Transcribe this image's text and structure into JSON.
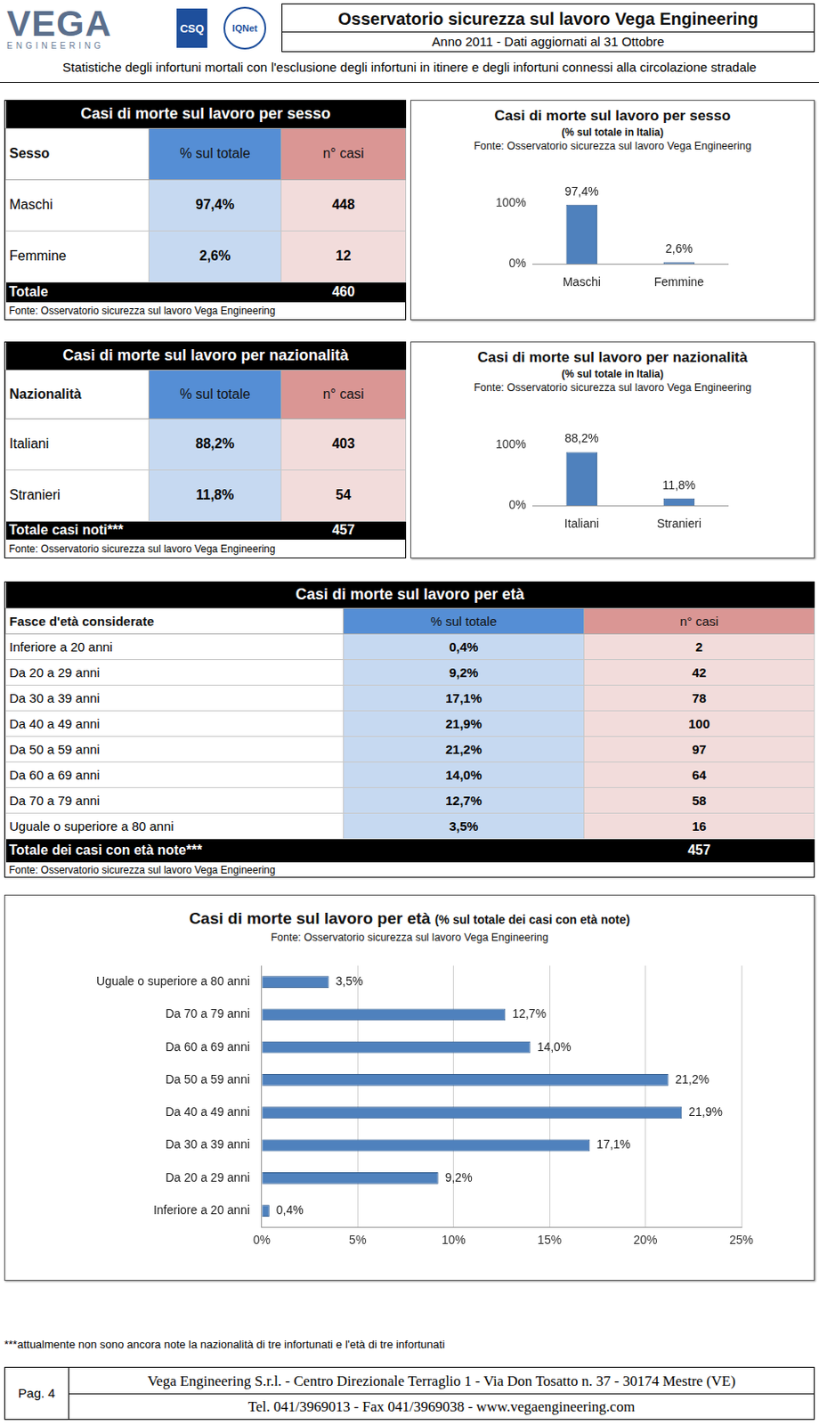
{
  "header": {
    "logos": [
      "VEGA",
      "ENGINEERING",
      "CSQ",
      "IQNet"
    ],
    "title": "Osservatorio sicurezza sul lavoro Vega Engineering",
    "subtitle": "Anno 2011 - Dati aggiornati al 31 Ottobre",
    "note": "Statistiche degli infortuni mortali con l'esclusione degli infortuni in itinere e degli infortuni connessi alla circolazione stradale"
  },
  "tables": [
    {
      "title": "Casi di morte sul lavoro per sesso",
      "columns": [
        "Sesso",
        "% sul totale",
        "n° casi"
      ],
      "rows": [
        [
          "Maschi",
          "97,4%",
          "448"
        ],
        [
          "Femmine",
          "2,6%",
          "12"
        ]
      ],
      "total": {
        "label": "Totale",
        "value": "460"
      },
      "source": "Fonte: Osservatorio sicurezza sul lavoro Vega Engineering"
    },
    {
      "title": "Casi di morte sul lavoro per nazionalità",
      "columns": [
        "Nazionalità",
        "% sul totale",
        "n° casi"
      ],
      "rows": [
        [
          "Italiani",
          "88,2%",
          "403"
        ],
        [
          "Stranieri",
          "11,8%",
          "54"
        ]
      ],
      "total": {
        "label": "Totale casi noti***",
        "value": "457"
      },
      "source": "Fonte: Osservatorio sicurezza sul lavoro Vega Engineering"
    },
    {
      "title": "Casi di morte sul lavoro per età",
      "columns": [
        "Fasce d'età considerate",
        "% sul totale",
        "n° casi"
      ],
      "rows": [
        [
          "Inferiore a 20 anni",
          "0,4%",
          "2"
        ],
        [
          "Da 20 a 29 anni",
          "9,2%",
          "42"
        ],
        [
          "Da 30 a 39 anni",
          "17,1%",
          "78"
        ],
        [
          "Da 40 a 49 anni",
          "21,9%",
          "100"
        ],
        [
          "Da 50 a 59 anni",
          "21,2%",
          "97"
        ],
        [
          "Da 60 a 69 anni",
          "14,0%",
          "64"
        ],
        [
          "Da 70 a 79 anni",
          "12,7%",
          "58"
        ],
        [
          "Uguale o superiore a 80 anni",
          "3,5%",
          "16"
        ]
      ],
      "total": {
        "label": "Totale dei casi con età note***",
        "value": "457"
      },
      "source": "Fonte: Osservatorio sicurezza sul lavoro Vega Engineering"
    }
  ],
  "chart_data": [
    {
      "type": "bar",
      "title": "Casi di morte sul lavoro per sesso",
      "subtitle": "(% sul totale in Italia)",
      "source": "Fonte: Osservatorio sicurezza sul lavoro Vega Engineering",
      "categories": [
        "Maschi",
        "Femmine"
      ],
      "values": [
        97.4,
        2.6
      ],
      "value_labels": [
        "97,4%",
        "2,6%"
      ],
      "color": "#4f81bd",
      "ylim": [
        0,
        100
      ],
      "yticks": [
        {
          "value": 0,
          "label": "0%"
        },
        {
          "value": 100,
          "label": "100%"
        }
      ],
      "grid": false,
      "data_labels": true
    },
    {
      "type": "bar",
      "title": "Casi di morte sul lavoro per nazionalità",
      "subtitle": "(% sul totale in Italia)",
      "source": "Fonte: Osservatorio sicurezza sul lavoro Vega Engineering",
      "categories": [
        "Italiani",
        "Stranieri"
      ],
      "values": [
        88.2,
        11.8
      ],
      "value_labels": [
        "88,2%",
        "11,8%"
      ],
      "color": "#4f81bd",
      "ylim": [
        0,
        100
      ],
      "yticks": [
        {
          "value": 0,
          "label": "0%"
        },
        {
          "value": 100,
          "label": "100%"
        }
      ],
      "grid": false,
      "data_labels": true
    },
    {
      "type": "bar",
      "title": "Casi di morte sul lavoro per età",
      "subtitle": "(% sul totale dei casi con età note)",
      "source": "Fonte: Osservatorio sicurezza sul lavoro Vega Engineering",
      "orientation": "horizontal",
      "categories": [
        "Uguale o superiore a 80 anni",
        "Da 70 a 79 anni",
        "Da 60 a 69 anni",
        "Da 50 a 59 anni",
        "Da 40 a 49 anni",
        "Da 30 a 39 anni",
        "Da 20 a 29 anni",
        "Inferiore a 20 anni"
      ],
      "values": [
        3.5,
        12.7,
        14.0,
        21.2,
        21.9,
        17.1,
        9.2,
        0.4
      ],
      "value_labels": [
        "3,5%",
        "12,7%",
        "14,0%",
        "21,2%",
        "21,9%",
        "17,1%",
        "9,2%",
        "0,4%"
      ],
      "color": "#4f81bd",
      "xlim": [
        0,
        25
      ],
      "xticks": [
        {
          "value": 0,
          "label": "0%"
        },
        {
          "value": 5,
          "label": "5%"
        },
        {
          "value": 10,
          "label": "10%"
        },
        {
          "value": 15,
          "label": "15%"
        },
        {
          "value": 20,
          "label": "20%"
        },
        {
          "value": 25,
          "label": "25%"
        }
      ],
      "grid": true,
      "data_labels": true
    }
  ],
  "footnote": "***attualmente non sono ancora note la nazionalità di tre infortunati e l'età di tre infortunati",
  "footer": {
    "page": "Pag. 4",
    "lines": [
      "Vega Engineering S.r.l. - Centro Direzionale Terraglio 1 - Via Don Tosatto n. 37 - 30174 Mestre (VE)",
      "Tel. 041/3969013 - Fax 041/3969038 - www.vegaengineering.com"
    ]
  }
}
